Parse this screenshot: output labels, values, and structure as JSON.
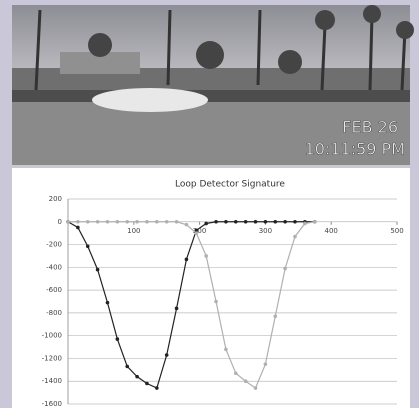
{
  "photo": {
    "date": "FEB 26",
    "time": "10:11:59 PM"
  },
  "chart_data": {
    "type": "line",
    "title": "Loop Detector Signature",
    "x": [
      0,
      15,
      30,
      45,
      60,
      75,
      90,
      105,
      120,
      135,
      150,
      165,
      180,
      195,
      210,
      225,
      240,
      255,
      270,
      285,
      300,
      315,
      330,
      345,
      360,
      375
    ],
    "series": [
      {
        "color": "#222222",
        "values": [
          0,
          -50,
          -215,
          -420,
          -710,
          -1030,
          -1270,
          -1360,
          -1420,
          -1460,
          -1170,
          -760,
          -330,
          -75,
          -15,
          0,
          0,
          0,
          0,
          0,
          0,
          0,
          0,
          0,
          0,
          0
        ]
      },
      {
        "color": "#b0b0b0",
        "values": [
          0,
          0,
          0,
          0,
          0,
          0,
          0,
          0,
          0,
          0,
          0,
          0,
          -25,
          -100,
          -300,
          -700,
          -1120,
          -1330,
          -1400,
          -1460,
          -1250,
          -830,
          -410,
          -130,
          -15,
          0
        ]
      }
    ],
    "xlim": [
      0,
      500
    ],
    "xticks": [
      100,
      200,
      300,
      400,
      500
    ],
    "ylim": [
      -1600,
      200
    ],
    "yticks": [
      200,
      0,
      -200,
      -400,
      -600,
      -800,
      -1000,
      -1200,
      -1400,
      -1600
    ],
    "grid": true
  }
}
